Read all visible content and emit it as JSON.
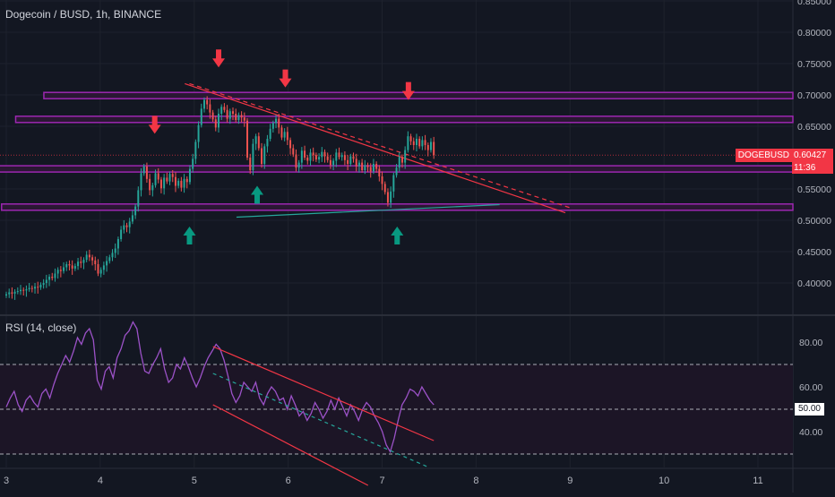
{
  "header": {
    "symbol_title": "Dogecoin / BUSD, 1h, BINANCE",
    "rsi_title": "RSI (14, close)"
  },
  "price_tag": {
    "symbol": "DOGEBUSD",
    "price": "0.60427",
    "countdown": "11:36"
  },
  "rsi_tag": {
    "value": "50.00"
  },
  "colors": {
    "background": "#131722",
    "up_candle": "#26a69a",
    "down_candle": "#ef5350",
    "zone_border": "#9c27b0",
    "zone_fill": "#2a1733",
    "trendline": "#f23645",
    "support_line": "#26a69a",
    "rsi_line": "#9c52c8",
    "rsi_channel": "#f23645",
    "rsi_mid_dashed": "#26a69a",
    "arrow_down": "#f23645",
    "arrow_up": "#089981"
  },
  "chart_data": {
    "type": "candlestick",
    "title": "Dogecoin / BUSD, 1h, BINANCE",
    "x_ticks": [
      "3",
      "4",
      "5",
      "6",
      "7",
      "8",
      "9",
      "10",
      "11"
    ],
    "x_range": [
      3,
      11.5
    ],
    "price_axis": {
      "ticks": [
        "0.85000",
        "0.80000",
        "0.75000",
        "0.70000",
        "0.65000",
        "0.55000",
        "0.50000",
        "0.45000",
        "0.40000"
      ],
      "range": [
        0.355,
        0.855
      ]
    },
    "rsi_axis": {
      "ticks": [
        "80.00",
        "60.00",
        "40.00"
      ],
      "range": [
        22,
        92
      ]
    },
    "horizontal_zones": [
      {
        "low": 0.694,
        "high": 0.704,
        "x_start": 3.4
      },
      {
        "low": 0.656,
        "high": 0.666,
        "x_start": 3.1
      },
      {
        "low": 0.577,
        "high": 0.587,
        "x_start": 2.85
      },
      {
        "low": 0.516,
        "high": 0.526,
        "x_start": 2.95
      }
    ],
    "trendlines": [
      {
        "style": "solid",
        "from": [
          4.9,
          0.718
        ],
        "to": [
          8.95,
          0.512
        ]
      },
      {
        "style": "dashed",
        "from": [
          4.95,
          0.718
        ],
        "to": [
          9.0,
          0.52
        ]
      },
      {
        "style": "solid_teal",
        "from": [
          5.45,
          0.505
        ],
        "to": [
          8.25,
          0.525
        ]
      }
    ],
    "arrows": [
      {
        "dir": "down",
        "x": 4.58,
        "y": 0.638
      },
      {
        "dir": "down",
        "x": 5.26,
        "y": 0.744
      },
      {
        "dir": "down",
        "x": 5.97,
        "y": 0.712
      },
      {
        "dir": "down",
        "x": 7.28,
        "y": 0.692
      },
      {
        "dir": "up",
        "x": 4.95,
        "y": 0.49
      },
      {
        "dir": "up",
        "x": 5.67,
        "y": 0.555
      },
      {
        "dir": "up",
        "x": 7.16,
        "y": 0.49
      }
    ],
    "close_series": [
      0.382,
      0.385,
      0.383,
      0.386,
      0.387,
      0.389,
      0.388,
      0.39,
      0.392,
      0.391,
      0.394,
      0.393,
      0.397,
      0.4,
      0.405,
      0.41,
      0.408,
      0.415,
      0.421,
      0.419,
      0.425,
      0.43,
      0.428,
      0.423,
      0.427,
      0.434,
      0.432,
      0.437,
      0.445,
      0.441,
      0.436,
      0.43,
      0.415,
      0.421,
      0.428,
      0.435,
      0.441,
      0.448,
      0.455,
      0.47,
      0.485,
      0.492,
      0.489,
      0.498,
      0.508,
      0.522,
      0.548,
      0.575,
      0.586,
      0.566,
      0.548,
      0.556,
      0.575,
      0.565,
      0.551,
      0.568,
      0.562,
      0.574,
      0.569,
      0.555,
      0.563,
      0.552,
      0.566,
      0.561,
      0.582,
      0.598,
      0.625,
      0.652,
      0.678,
      0.692,
      0.685,
      0.672,
      0.661,
      0.648,
      0.67,
      0.681,
      0.676,
      0.662,
      0.674,
      0.67,
      0.66,
      0.668,
      0.664,
      0.659,
      0.6,
      0.58,
      0.622,
      0.634,
      0.615,
      0.59,
      0.618,
      0.63,
      0.646,
      0.655,
      0.662,
      0.648,
      0.632,
      0.641,
      0.628,
      0.615,
      0.605,
      0.584,
      0.592,
      0.611,
      0.6,
      0.595,
      0.608,
      0.604,
      0.597,
      0.601,
      0.609,
      0.602,
      0.596,
      0.588,
      0.595,
      0.608,
      0.601,
      0.604,
      0.596,
      0.59,
      0.602,
      0.598,
      0.586,
      0.592,
      0.58,
      0.588,
      0.585,
      0.578,
      0.59,
      0.582,
      0.57,
      0.558,
      0.545,
      0.528,
      0.546,
      0.572,
      0.584,
      0.601,
      0.592,
      0.612,
      0.634,
      0.626,
      0.62,
      0.63,
      0.618,
      0.628,
      0.62,
      0.612,
      0.625,
      0.604
    ],
    "rsi_series": [
      51,
      55,
      58,
      52,
      49,
      54,
      56,
      53,
      51,
      57,
      59,
      55,
      61,
      66,
      70,
      74,
      71,
      76,
      82,
      79,
      84,
      86,
      81,
      63,
      59,
      67,
      69,
      64,
      73,
      77,
      83,
      85,
      89,
      86,
      75,
      67,
      66,
      70,
      73,
      77,
      68,
      62,
      64,
      70,
      68,
      73,
      69,
      64,
      60,
      64,
      69,
      73,
      76,
      79,
      77,
      72,
      65,
      57,
      53,
      56,
      62,
      60,
      58,
      62,
      55,
      52,
      57,
      60,
      58,
      54,
      55,
      50,
      56,
      52,
      47,
      49,
      45,
      48,
      53,
      50,
      46,
      49,
      54,
      50,
      55,
      51,
      47,
      52,
      49,
      45,
      50,
      53,
      51,
      47,
      44,
      40,
      34,
      31,
      37,
      45,
      52,
      55,
      59,
      58,
      56,
      60,
      57,
      54,
      52
    ]
  }
}
